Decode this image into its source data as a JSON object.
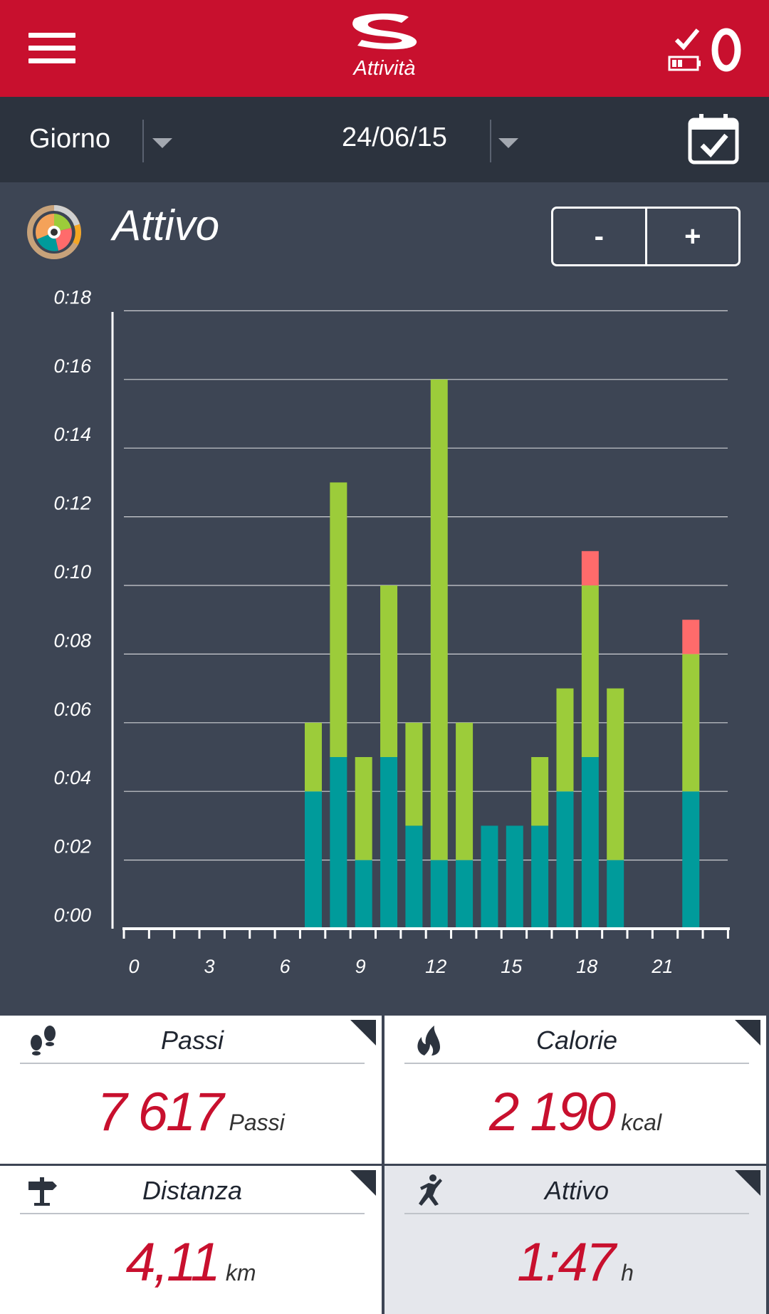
{
  "header": {
    "title": "Attività",
    "menu_icon": "hamburger-menu-icon",
    "sync_icon": "sync-check-icon",
    "battery_icon": "battery-low-icon",
    "band_icon": "activity-band-icon"
  },
  "filter": {
    "period": "Giorno",
    "date": "24/06/15",
    "calendar_icon": "calendar-check-icon"
  },
  "section": {
    "title": "Attivo",
    "zoom_out": "-",
    "zoom_in": "+"
  },
  "colors": {
    "brand": "#c8102e",
    "teal": "#009b9b",
    "green": "#9ccc3a",
    "red": "#ff6b6b"
  },
  "chart_data": {
    "type": "bar",
    "stacked": true,
    "x": [
      7,
      8,
      9,
      10,
      11,
      12,
      13,
      14,
      15,
      16,
      17,
      18,
      19,
      22
    ],
    "series": [
      {
        "color": "#009b9b",
        "values": [
          4,
          5,
          2,
          5,
          3,
          2,
          2,
          3,
          3,
          3,
          4,
          5,
          2,
          4
        ]
      },
      {
        "color": "#9ccc3a",
        "values": [
          2,
          8,
          3,
          5,
          3,
          14,
          4,
          0,
          0,
          2,
          3,
          5,
          5,
          4
        ]
      },
      {
        "color": "#ff6b6b",
        "values": [
          0,
          0,
          0,
          0,
          0,
          0,
          0,
          0,
          0,
          0,
          0,
          1,
          0,
          1
        ]
      }
    ],
    "y_unit": "minutes",
    "ylim": [
      0,
      18
    ],
    "xlim": [
      0,
      24
    ],
    "y_ticks": [
      "0:00",
      "0:02",
      "0:04",
      "0:06",
      "0:08",
      "0:10",
      "0:12",
      "0:14",
      "0:16",
      "0:18"
    ],
    "x_ticks": [
      "0",
      "3",
      "6",
      "9",
      "12",
      "15",
      "18",
      "21"
    ],
    "grid": true
  },
  "stats": {
    "steps": {
      "title": "Passi",
      "value": "7 617",
      "unit": "Passi",
      "icon": "footprints-icon"
    },
    "calories": {
      "title": "Calorie",
      "value": "2 190",
      "unit": "kcal",
      "icon": "flame-icon"
    },
    "distance": {
      "title": "Distanza",
      "value": "4,11",
      "unit": "km",
      "icon": "signpost-icon"
    },
    "active": {
      "title": "Attivo",
      "value": "1:47",
      "unit": "h",
      "icon": "running-person-icon"
    }
  }
}
